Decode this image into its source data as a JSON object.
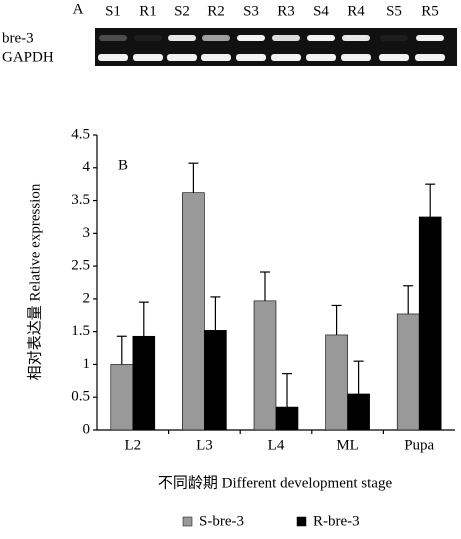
{
  "gel": {
    "panel_label": "A",
    "lanes": [
      "S1",
      "R1",
      "S2",
      "R2",
      "S3",
      "R3",
      "S4",
      "R4",
      "S5",
      "R5"
    ],
    "rows": [
      "bre-3",
      "GAPDH"
    ]
  },
  "chart_data": {
    "type": "bar",
    "annotation": "B",
    "y_label": "相对表达量 Relative expression",
    "x_label": "不同龄期 Different development stage",
    "categories": [
      "L2",
      "L3",
      "L4",
      "ML",
      "Pupa"
    ],
    "series": [
      {
        "name": "S-bre-3",
        "color": "#999999",
        "values": [
          1.0,
          3.62,
          1.97,
          1.45,
          1.77
        ],
        "errors": [
          0.43,
          0.45,
          0.44,
          0.45,
          0.43
        ]
      },
      {
        "name": "R-bre-3",
        "color": "#000000",
        "values": [
          1.43,
          1.52,
          0.35,
          0.55,
          3.25
        ],
        "errors": [
          0.52,
          0.51,
          0.51,
          0.5,
          0.5
        ]
      }
    ],
    "ylim": [
      0,
      4.5
    ],
    "yticks": [
      0,
      0.5,
      1,
      1.5,
      2,
      2.5,
      3,
      3.5,
      4,
      4.5
    ],
    "grid": false,
    "legend": "bottom"
  }
}
